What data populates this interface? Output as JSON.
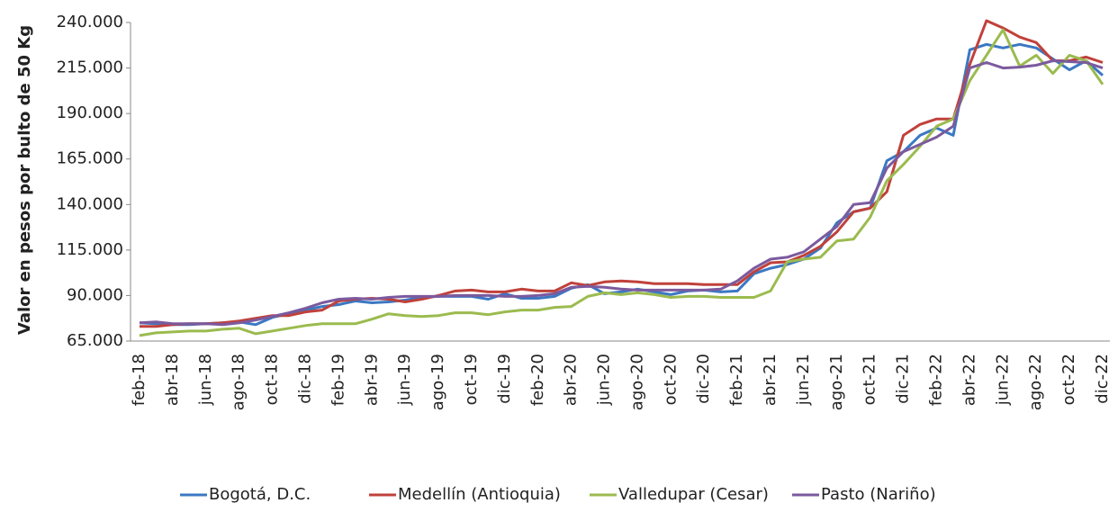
{
  "chart_data": {
    "type": "line",
    "y_label": "Valor en pesos por bulto de 50 Kg",
    "categories": [
      "feb-18",
      null,
      "abr-18",
      null,
      "jun-18",
      null,
      "ago-18",
      null,
      "oct-18",
      null,
      "dic-18",
      null,
      "feb-19",
      null,
      "abr-19",
      null,
      "jun-19",
      null,
      "ago-19",
      null,
      "oct-19",
      null,
      "dic-19",
      null,
      "feb-20",
      null,
      "abr-20",
      null,
      "jun-20",
      null,
      "ago-20",
      null,
      "oct-20",
      null,
      "dic-20",
      null,
      "feb-21",
      null,
      "abr-21",
      null,
      "jun-21",
      null,
      "ago-21",
      null,
      "oct-21",
      null,
      "dic-21",
      null,
      "feb-22",
      null,
      "abr-22",
      null,
      "jun-22",
      null,
      "ago-22",
      null,
      "oct-22",
      null,
      "dic-22"
    ],
    "ylim": [
      65000,
      240000
    ],
    "yticks": [
      {
        "value": 65000,
        "label": "65.000"
      },
      {
        "value": 90000,
        "label": "90.000"
      },
      {
        "value": 115000,
        "label": "115.000"
      },
      {
        "value": 140000,
        "label": "140.000"
      },
      {
        "value": 165000,
        "label": "165.000"
      },
      {
        "value": 190000,
        "label": "190.000"
      },
      {
        "value": 215000,
        "label": "215.000"
      },
      {
        "value": 240000,
        "label": "240.000"
      }
    ],
    "legend": "bottom",
    "series": [
      {
        "name": "Bogotá, D.C.",
        "color": "#3b78c3",
        "values": [
          75000,
          74500,
          74000,
          74000,
          74500,
          75000,
          75500,
          74000,
          78000,
          80000,
          82000,
          84000,
          85000,
          87000,
          86000,
          86500,
          87500,
          89000,
          89500,
          89500,
          89500,
          88000,
          91000,
          88500,
          88500,
          89500,
          94000,
          96000,
          91000,
          92000,
          93500,
          92000,
          90500,
          92500,
          93000,
          92000,
          92500,
          102000,
          105000,
          107000,
          110000,
          116000,
          130000,
          136000,
          138000,
          164000,
          169000,
          178000,
          182000,
          178000,
          225000,
          228000,
          226000,
          228000,
          226000,
          220000,
          214000,
          219000,
          211000
        ]
      },
      {
        "name": "Medellín (Antioquia)",
        "color": "#c0413b",
        "values": [
          73000,
          73000,
          74000,
          74500,
          74500,
          75000,
          76000,
          77500,
          79000,
          79000,
          81000,
          82000,
          87000,
          88000,
          88500,
          88000,
          86500,
          88000,
          90000,
          92500,
          93000,
          92000,
          92000,
          93500,
          92500,
          92500,
          97000,
          95500,
          97500,
          98000,
          97500,
          96500,
          96500,
          96500,
          96000,
          96000,
          96000,
          103000,
          108000,
          108500,
          112000,
          117000,
          125000,
          136000,
          138000,
          147000,
          178000,
          184000,
          187000,
          187000,
          217000,
          241000,
          237000,
          232000,
          229000,
          219000,
          219000,
          221000,
          218000
        ]
      },
      {
        "name": "Valledupar (Cesar)",
        "color": "#9bbb4f",
        "values": [
          68000,
          69500,
          70000,
          70500,
          70500,
          71500,
          72000,
          69000,
          70500,
          72000,
          73500,
          74500,
          74500,
          74500,
          77000,
          80000,
          79000,
          78500,
          79000,
          80500,
          80500,
          79500,
          81000,
          82000,
          82000,
          83500,
          84000,
          89500,
          91500,
          90500,
          91500,
          90500,
          89000,
          89500,
          89500,
          89000,
          89000,
          89000,
          92500,
          108500,
          110000,
          111000,
          120000,
          121000,
          133000,
          153000,
          162000,
          172000,
          183000,
          187000,
          208000,
          222000,
          236000,
          216000,
          222000,
          212000,
          222000,
          219000,
          206000
        ]
      },
      {
        "name": "Pasto (Nariño)",
        "color": "#7b5a9e",
        "values": [
          75000,
          75500,
          74500,
          74500,
          74500,
          74000,
          75000,
          76500,
          78500,
          80500,
          83000,
          86000,
          88000,
          88500,
          88000,
          89000,
          89500,
          89500,
          89500,
          90000,
          90000,
          90000,
          89500,
          89500,
          90000,
          91000,
          94500,
          95000,
          94500,
          93500,
          93000,
          93000,
          93000,
          93000,
          93000,
          93500,
          98000,
          105000,
          110000,
          111000,
          114000,
          121000,
          128000,
          140000,
          141000,
          160000,
          169000,
          173000,
          177000,
          183000,
          215000,
          218000,
          215000,
          215500,
          216500,
          219000,
          218500,
          218000,
          215000
        ]
      }
    ]
  }
}
